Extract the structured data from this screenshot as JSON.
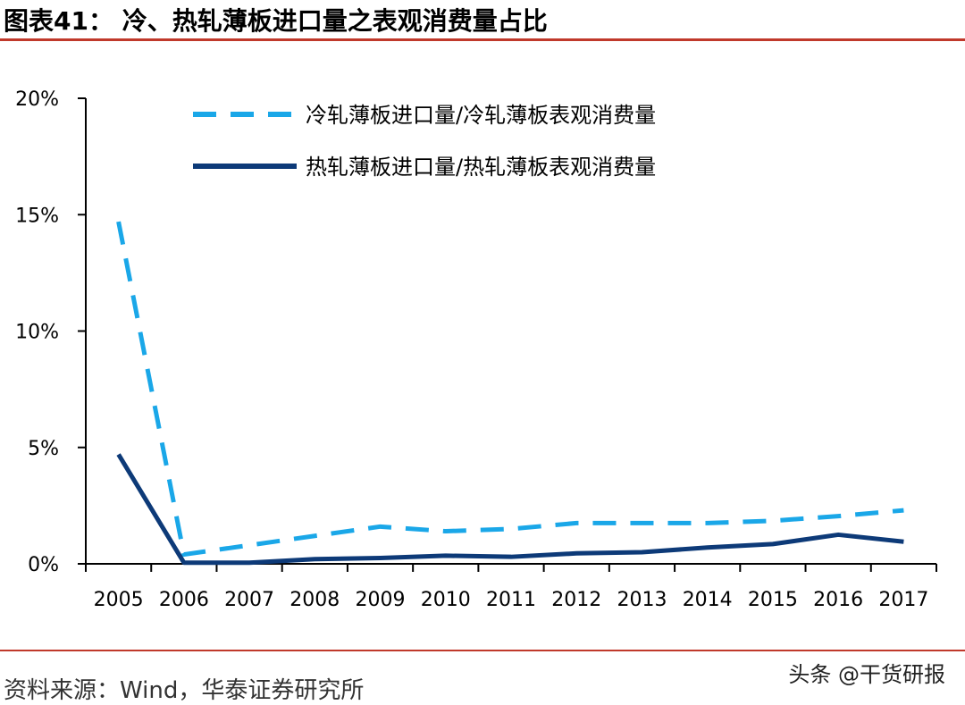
{
  "header": {
    "title": "图表41：  冷、热轧薄板进口量之表观消费量占比"
  },
  "footer": {
    "source": "资料来源：Wind，华泰证券研究所",
    "watermark": "头条 @干货研报"
  },
  "colors": {
    "accent_rule": "#c0392b",
    "cold_series": "#1aa7e8",
    "hot_series": "#0d3a78"
  },
  "chart_data": {
    "type": "line",
    "title": "冷、热轧薄板进口量之表观消费量占比",
    "x": [
      "2005",
      "2006",
      "2007",
      "2008",
      "2009",
      "2010",
      "2011",
      "2012",
      "2013",
      "2014",
      "2015",
      "2016",
      "2017"
    ],
    "ylim": [
      0,
      20
    ],
    "yticks": [
      0,
      5,
      10,
      15,
      20
    ],
    "ytick_labels": [
      "0%",
      "5%",
      "10%",
      "15%",
      "20%"
    ],
    "grid": false,
    "legend_position": "top",
    "series": [
      {
        "name": "冷轧薄板进口量/冷轧薄板表观消费量",
        "style": "dashed",
        "values": [
          14.7,
          0.4,
          0.8,
          1.2,
          1.6,
          1.4,
          1.5,
          1.75,
          1.75,
          1.75,
          1.85,
          2.05,
          2.3
        ]
      },
      {
        "name": "热轧薄板进口量/热轧薄板表观消费量",
        "style": "solid",
        "values": [
          4.7,
          0.05,
          0.05,
          0.2,
          0.25,
          0.35,
          0.3,
          0.45,
          0.5,
          0.7,
          0.85,
          1.25,
          0.95
        ]
      }
    ]
  }
}
